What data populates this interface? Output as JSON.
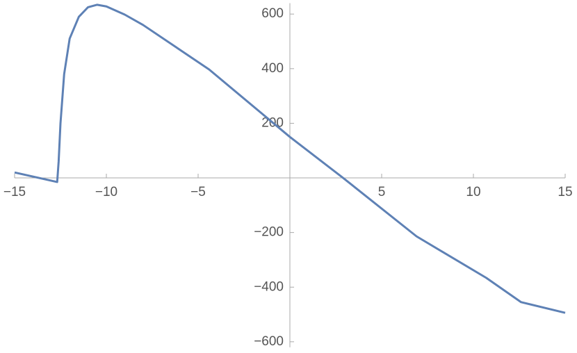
{
  "chart_data": {
    "type": "line",
    "x": [
      -15,
      -12.68,
      -12.6,
      -12.5,
      -12.3,
      -12,
      -11.5,
      -11,
      -10.5,
      -10,
      -9,
      -8,
      -4.4,
      0,
      2.9,
      6.9,
      10.7,
      12.6,
      15
    ],
    "series": [
      {
        "color": "#5e81b5",
        "values": [
          20,
          -15,
          60,
          200,
          380,
          510,
          590,
          625,
          634,
          628,
          598,
          560,
          397,
          150,
          0,
          -214,
          -366,
          -455,
          -494
        ]
      }
    ],
    "xlim": [
      -15,
      15
    ],
    "ylim": [
      -620,
      640
    ],
    "xticks": [
      {
        "value": -15,
        "label": "−15"
      },
      {
        "value": -10,
        "label": "−10"
      },
      {
        "value": -5,
        "label": "−5"
      },
      5,
      10,
      15
    ],
    "yticks": [
      {
        "value": -600,
        "label": "−600"
      },
      {
        "value": -400,
        "label": "−400"
      },
      {
        "value": -200,
        "label": "−200"
      },
      200,
      400,
      600
    ]
  }
}
